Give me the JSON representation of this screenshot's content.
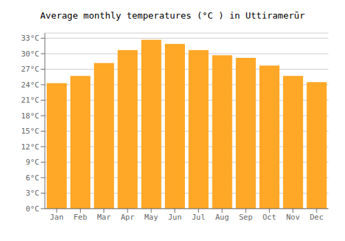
{
  "chart_data": {
    "type": "bar",
    "title": "Average monthly temperatures (°C ) in Uttiramerūr",
    "categories": [
      "Jan",
      "Feb",
      "Mar",
      "Apr",
      "May",
      "Jun",
      "Jul",
      "Aug",
      "Sep",
      "Oct",
      "Nov",
      "Dec"
    ],
    "values": [
      24.3,
      25.7,
      28.2,
      30.7,
      32.7,
      31.9,
      30.7,
      29.7,
      29.2,
      27.7,
      25.7,
      24.5
    ],
    "color": "#FFA726",
    "ylim": [
      0,
      34
    ],
    "yticks": [
      {
        "value": 0,
        "label": "0°C"
      },
      {
        "value": 3,
        "label": "3°C"
      },
      {
        "value": 6,
        "label": "6°C"
      },
      {
        "value": 9,
        "label": "9°C"
      },
      {
        "value": 12,
        "label": "12°C"
      },
      {
        "value": 15,
        "label": "15°C"
      },
      {
        "value": 18,
        "label": "18°C"
      },
      {
        "value": 21,
        "label": "21°C"
      },
      {
        "value": 24,
        "label": "24°C"
      },
      {
        "value": 27,
        "label": "27°C"
      },
      {
        "value": 30,
        "label": "30°C"
      },
      {
        "value": 33,
        "label": "33°C"
      }
    ],
    "grid": true
  }
}
